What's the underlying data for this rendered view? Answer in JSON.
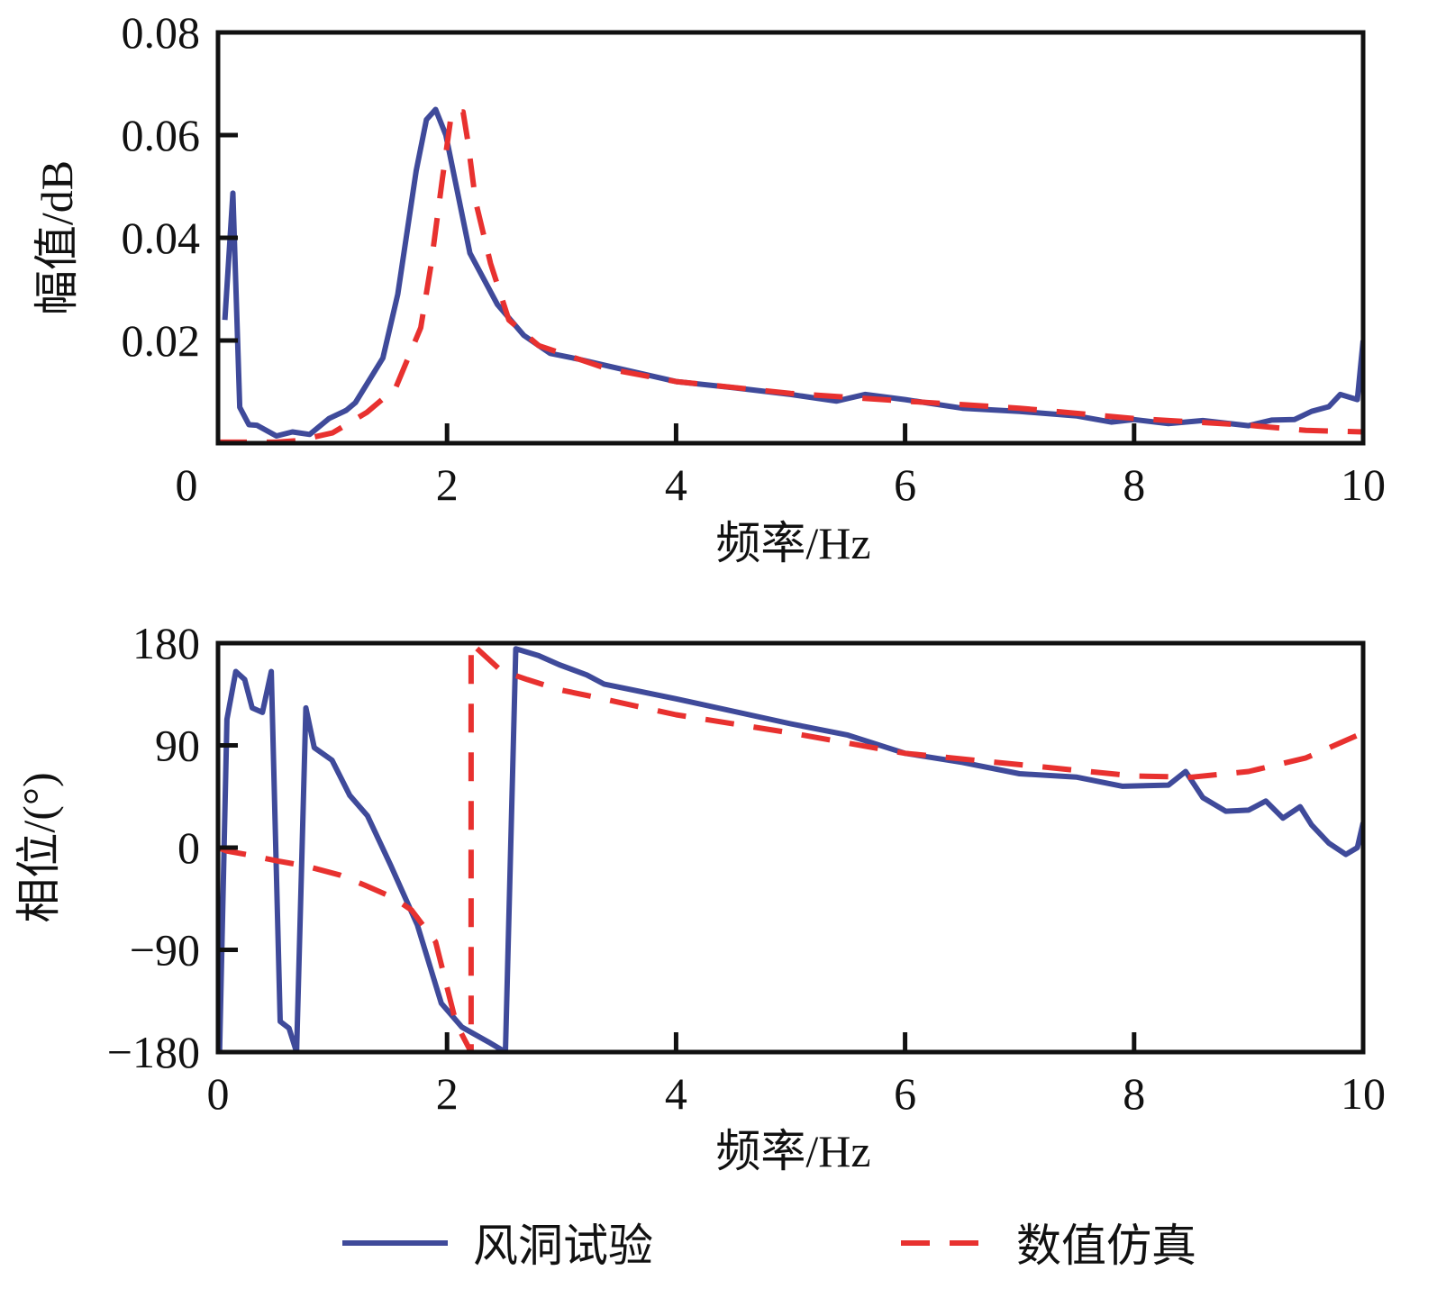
{
  "chart_data": [
    {
      "type": "line",
      "id": "amplitude",
      "xlabel": "频率/Hz",
      "ylabel": "幅值/dB",
      "xlim": [
        0,
        10
      ],
      "ylim": [
        0,
        0.08
      ],
      "xticks": [
        "0",
        "2",
        "4",
        "6",
        "8",
        "10"
      ],
      "yticks": [
        "0.02",
        "0.04",
        "0.06",
        "0.08"
      ],
      "grid": false,
      "series": [
        {
          "name": "风洞试验",
          "color": "#3f4a9a",
          "style": "solid",
          "x": [
            0.06,
            0.13,
            0.19,
            0.27,
            0.34,
            0.51,
            0.65,
            0.8,
            0.97,
            1.12,
            1.2,
            1.44,
            1.57,
            1.73,
            1.82,
            1.9,
            1.99,
            2.2,
            2.44,
            2.67,
            2.9,
            3.14,
            3.43,
            4.0,
            4.5,
            5.0,
            5.4,
            5.65,
            6.0,
            6.5,
            7.0,
            7.5,
            7.8,
            8.0,
            8.3,
            8.6,
            9.0,
            9.2,
            9.4,
            9.55,
            9.7,
            9.8,
            9.95,
            10.0
          ],
          "y": [
            0.024,
            0.0487,
            0.007,
            0.0036,
            0.0035,
            0.0014,
            0.0022,
            0.0017,
            0.0048,
            0.0064,
            0.0079,
            0.0166,
            0.029,
            0.053,
            0.063,
            0.065,
            0.06,
            0.037,
            0.027,
            0.021,
            0.0175,
            0.0164,
            0.0149,
            0.012,
            0.0108,
            0.0095,
            0.0082,
            0.0095,
            0.0085,
            0.0068,
            0.0062,
            0.0053,
            0.0041,
            0.0046,
            0.0038,
            0.0044,
            0.0034,
            0.0045,
            0.0046,
            0.0062,
            0.0071,
            0.0095,
            0.0085,
            0.02
          ]
        },
        {
          "name": "数值仿真",
          "color": "#e8312f",
          "style": "dashed",
          "x": [
            0.0,
            0.5,
            0.7,
            1.0,
            1.3,
            1.55,
            1.77,
            1.86,
            1.96,
            2.04,
            2.14,
            2.18,
            2.25,
            2.38,
            2.54,
            2.8,
            3.4,
            4.0,
            5.0,
            6.0,
            7.0,
            8.0,
            9.0,
            9.5,
            10.0
          ],
          "y": [
            0.0002,
            0.0002,
            0.0005,
            0.002,
            0.006,
            0.0107,
            0.0225,
            0.0347,
            0.0516,
            0.0645,
            0.0645,
            0.059,
            0.047,
            0.035,
            0.024,
            0.019,
            0.0145,
            0.012,
            0.0097,
            0.0082,
            0.0068,
            0.0048,
            0.0035,
            0.0025,
            0.0022
          ]
        }
      ]
    },
    {
      "type": "line",
      "id": "phase",
      "xlabel": "频率/Hz",
      "ylabel": "相位/(°)",
      "xlim": [
        0,
        10
      ],
      "ylim": [
        -180,
        180
      ],
      "xticks": [
        "0",
        "2",
        "4",
        "6",
        "8",
        "10"
      ],
      "yticks": [
        "180",
        "90",
        "0",
        "−90",
        "−180"
      ],
      "ytick_values": [
        180,
        90,
        0,
        -90,
        -180
      ],
      "grid": false,
      "series": [
        {
          "name": "风洞试验",
          "color": "#3f4a9a",
          "style": "solid",
          "x": [
            0.013,
            0.078,
            0.155,
            0.233,
            0.298,
            0.388,
            0.465,
            0.543,
            0.62,
            0.686,
            0.767,
            0.84,
            0.995,
            1.15,
            1.305,
            1.51,
            1.74,
            1.95,
            2.13,
            2.36,
            2.51,
            2.6,
            2.8,
            2.98,
            3.22,
            3.37,
            4.0,
            5.0,
            5.5,
            6.0,
            6.5,
            7.0,
            7.5,
            7.9,
            8.3,
            8.45,
            8.6,
            8.8,
            9.0,
            9.15,
            9.3,
            9.45,
            9.55,
            9.7,
            9.85,
            9.95,
            10.0
          ],
          "y": [
            -180,
            113,
            155,
            148,
            123,
            119,
            155,
            -153,
            -159,
            -180,
            123,
            88,
            77,
            46,
            28,
            -16,
            -68,
            -137,
            -158,
            -171,
            -180,
            175,
            169,
            161,
            152,
            144,
            131,
            109,
            99,
            83,
            75,
            65,
            62,
            54,
            55,
            67,
            44,
            32,
            33,
            41,
            26,
            36,
            20,
            4,
            -6,
            0,
            22
          ]
        },
        {
          "name": "数值仿真",
          "color": "#e8312f",
          "style": "dashed",
          "x": [
            0.0,
            0.078,
            0.246,
            0.53,
            0.76,
            1.06,
            1.28,
            1.53,
            1.69,
            1.9,
            2.08,
            2.21,
            2.21,
            2.47,
            2.7,
            2.98,
            3.22,
            4.0,
            5.0,
            6.0,
            7.0,
            8.0,
            8.5,
            9.0,
            9.5,
            10.0
          ],
          "y": [
            0,
            -3,
            -6,
            -12,
            -16,
            -24,
            -33,
            -44,
            -55,
            -83,
            -155,
            -180,
            180,
            156,
            148,
            139,
            134,
            117,
            101,
            83,
            73,
            63,
            62,
            67,
            79,
            101
          ]
        }
      ]
    }
  ],
  "legend": {
    "placement": "bottom-center",
    "items": [
      {
        "label": "风洞试验",
        "color": "#3f4a9a",
        "style": "solid"
      },
      {
        "label": "数值仿真",
        "color": "#e8312f",
        "style": "dashed"
      }
    ]
  }
}
